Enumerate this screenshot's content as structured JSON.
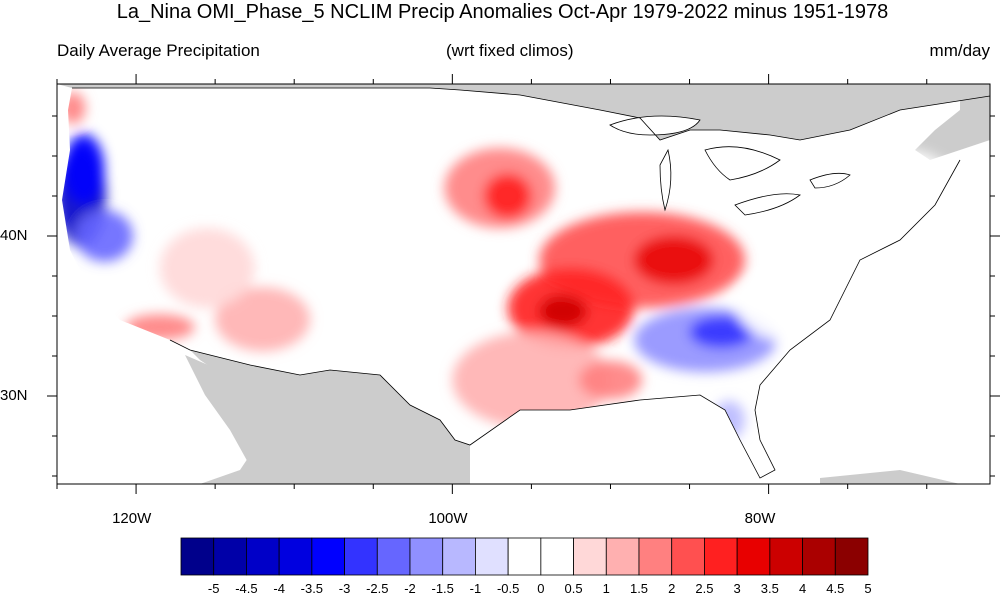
{
  "title": "La_Nina OMI_Phase_5 NCLIM Precip Anomalies Oct-Apr 1979-2022 minus 1951-1978",
  "subtitle_left": "Daily Average Precipitation",
  "subtitle_center": "(wrt fixed climos)",
  "subtitle_right": "mm/day",
  "map": {
    "lon_range": [
      -125,
      -66
    ],
    "lat_range": [
      24.5,
      49.5
    ],
    "x_ticks": [
      {
        "label": "120W",
        "lon": -120
      },
      {
        "label": "100W",
        "lon": -100
      },
      {
        "label": "80W",
        "lon": -80
      }
    ],
    "y_ticks": [
      {
        "label": "40N",
        "lat": 40
      },
      {
        "label": "30N",
        "lat": 30
      }
    ],
    "land_outside_color": "#cccccc"
  },
  "colorbar": {
    "tick_labels": [
      "-5",
      "-4.5",
      "-4",
      "-3.5",
      "-3",
      "-2.5",
      "-2",
      "-1.5",
      "-1",
      "-0.5",
      "0",
      "0.5",
      "1",
      "1.5",
      "2",
      "2.5",
      "3",
      "3.5",
      "4",
      "4.5",
      "5"
    ],
    "colors": [
      "#00008b",
      "#0000a8",
      "#0000c8",
      "#0000e0",
      "#0000ff",
      "#3333ff",
      "#6666ff",
      "#9090ff",
      "#b8b8ff",
      "#e0e0ff",
      "#ffffff",
      "#ffffff",
      "#ffd8d8",
      "#ffb0b0",
      "#ff8080",
      "#ff5050",
      "#ff2020",
      "#e80000",
      "#cc0000",
      "#aa0000",
      "#8b0000"
    ]
  },
  "anomalies": [
    {
      "name": "pacific-nw-coast-wet",
      "lon": -123.5,
      "lat": 42.5,
      "value": -4.5,
      "rx": 1.6,
      "ry": 3.2
    },
    {
      "name": "oregon-coast-wet",
      "lon": -123.3,
      "lat": 44.2,
      "value": -3.5,
      "rx": 1.3,
      "ry": 2.2
    },
    {
      "name": "n-california-wet",
      "lon": -122.0,
      "lat": 40.0,
      "value": -2.5,
      "rx": 1.8,
      "ry": 1.6
    },
    {
      "name": "washington-coast",
      "lon": -124.0,
      "lat": 48.0,
      "value": 1.5,
      "rx": 0.8,
      "ry": 1.0
    },
    {
      "name": "socal-coast",
      "lon": -118.5,
      "lat": 34.3,
      "value": 1.5,
      "rx": 2.2,
      "ry": 0.8
    },
    {
      "name": "arizona",
      "lon": -112.0,
      "lat": 34.8,
      "value": 1.0,
      "rx": 3.0,
      "ry": 2.0
    },
    {
      "name": "nevada",
      "lon": -115.5,
      "lat": 38.0,
      "value": 0.5,
      "rx": 3.0,
      "ry": 2.5
    },
    {
      "name": "central-rockies-dry",
      "lon": -109.0,
      "lat": 43.5,
      "value": -0.5,
      "rx": 3.0,
      "ry": 2.0
    },
    {
      "name": "northern-plains",
      "lon": -97.0,
      "lat": 43.0,
      "value": 1.5,
      "rx": 3.5,
      "ry": 2.5
    },
    {
      "name": "south-dakota-core",
      "lon": -96.5,
      "lat": 42.5,
      "value": 2.5,
      "rx": 1.5,
      "ry": 1.4
    },
    {
      "name": "ohio-valley",
      "lon": -88.0,
      "lat": 38.5,
      "value": 2.0,
      "rx": 6.5,
      "ry": 3.0
    },
    {
      "name": "kentucky-core",
      "lon": -86.0,
      "lat": 38.5,
      "value": 3.0,
      "rx": 2.5,
      "ry": 1.5
    },
    {
      "name": "arkansas",
      "lon": -92.5,
      "lat": 35.5,
      "value": 2.5,
      "rx": 4.0,
      "ry": 2.5
    },
    {
      "name": "arkansas-core",
      "lon": -93.0,
      "lat": 35.3,
      "value": 3.5,
      "rx": 1.5,
      "ry": 1.0
    },
    {
      "name": "texas-louisiana",
      "lon": -95.0,
      "lat": 31.0,
      "value": 1.0,
      "rx": 5.0,
      "ry": 3.0
    },
    {
      "name": "mississippi",
      "lon": -90.0,
      "lat": 31.0,
      "value": 1.5,
      "rx": 2.0,
      "ry": 1.2
    },
    {
      "name": "southeast-dry",
      "lon": -84.0,
      "lat": 33.5,
      "value": -2.0,
      "rx": 4.5,
      "ry": 2.0
    },
    {
      "name": "georgia-core",
      "lon": -83.0,
      "lat": 34.0,
      "value": -3.0,
      "rx": 2.0,
      "ry": 1.0
    },
    {
      "name": "florida-west",
      "lon": -82.5,
      "lat": 28.5,
      "value": -1.5,
      "rx": 1.0,
      "ry": 1.2
    },
    {
      "name": "carolinas",
      "lon": -79.0,
      "lat": 35.5,
      "value": -0.5,
      "rx": 3.0,
      "ry": 2.0
    },
    {
      "name": "new-england",
      "lon": -72.0,
      "lat": 43.0,
      "value": -0.5,
      "rx": 4.0,
      "ry": 2.5
    }
  ]
}
